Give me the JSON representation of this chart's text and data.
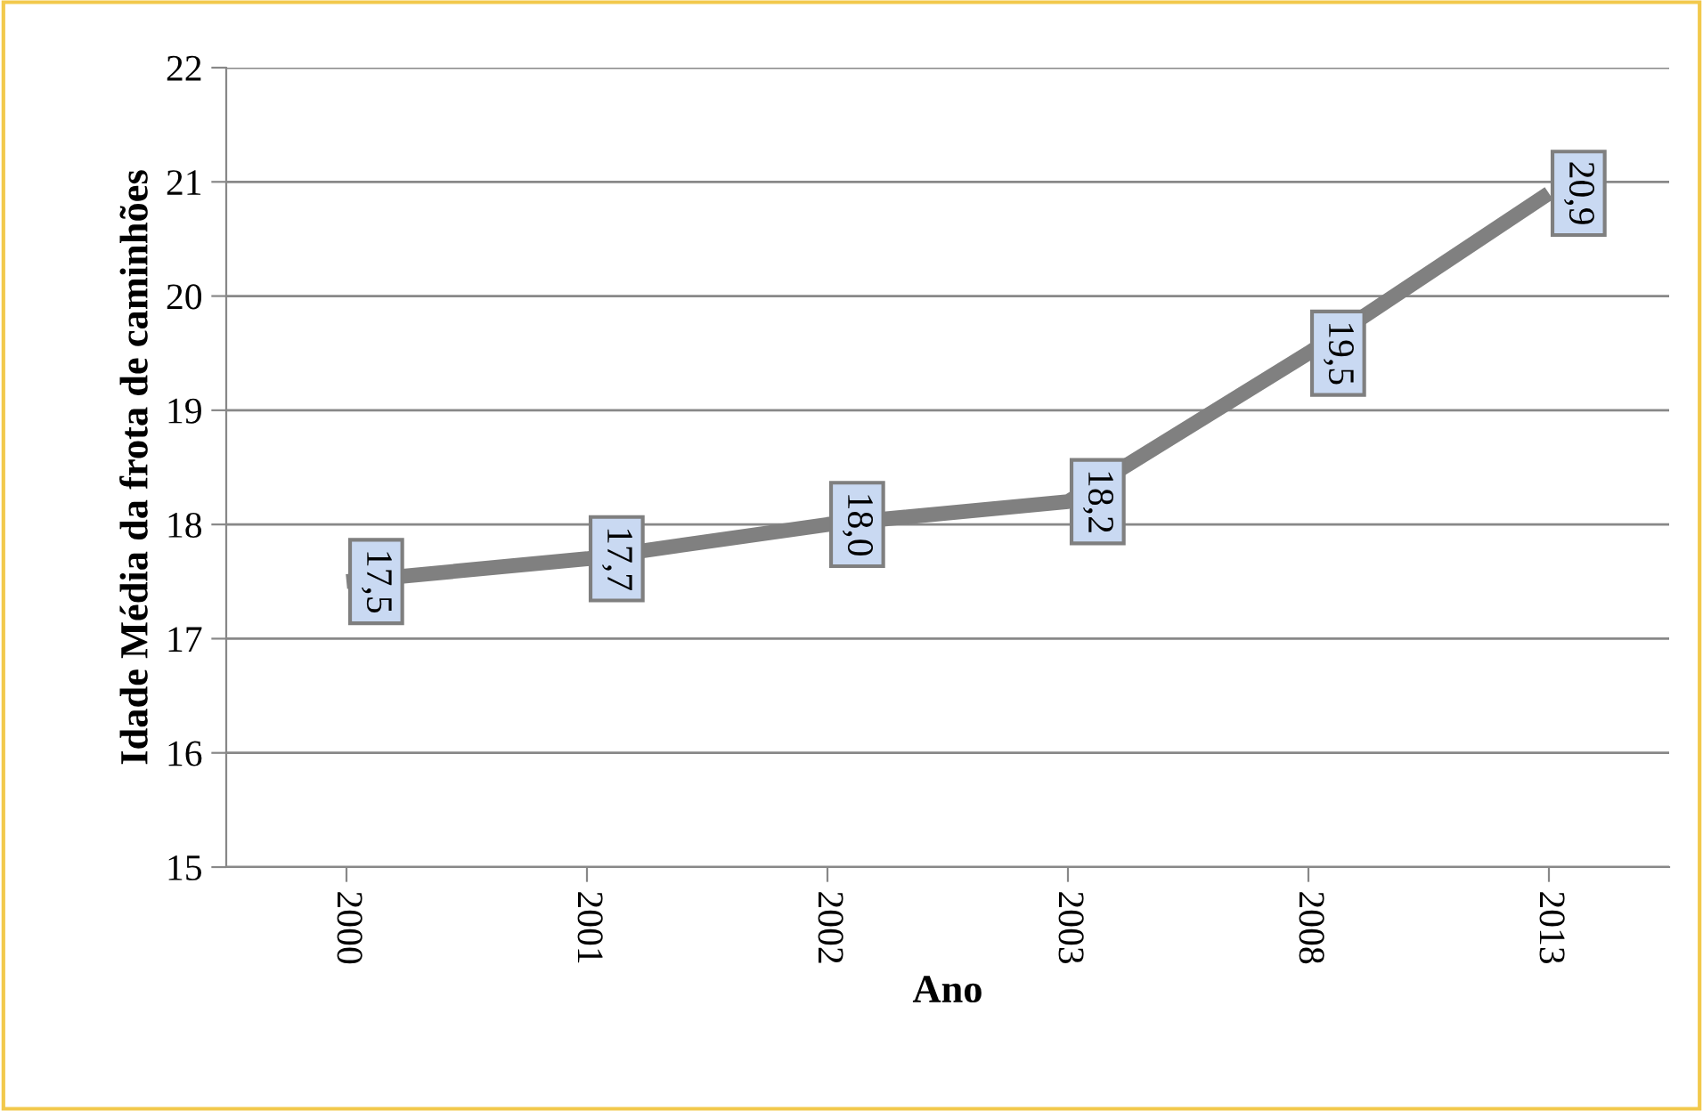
{
  "chart_data": {
    "type": "line",
    "xlabel": "Ano",
    "ylabel": "Idade Média da frota de caminhões",
    "categories": [
      "2000",
      "2001",
      "2002",
      "2003",
      "2008",
      "2013"
    ],
    "series": [
      {
        "color": "#808080",
        "values": [
          17.5,
          17.7,
          18.0,
          18.2,
          19.5,
          20.9
        ],
        "value_labels": [
          "17,5",
          "17,7",
          "18,0",
          "18,2",
          "19,5",
          "20,9"
        ]
      }
    ],
    "ylim": [
      15,
      22
    ],
    "yticks": [
      15,
      16,
      17,
      18,
      19,
      20,
      21,
      22
    ],
    "grid": "y",
    "marker": "none",
    "line_style": "solid",
    "legend": false
  }
}
